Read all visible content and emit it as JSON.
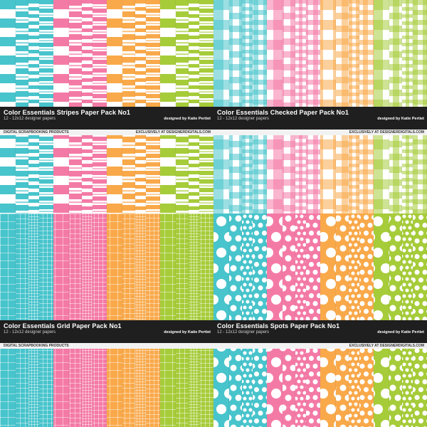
{
  "colors": {
    "aqua": "#48c4cc",
    "pink": "#f47aa6",
    "orange": "#f9a94a",
    "green": "#a6cc3a",
    "white": "#ffffff",
    "banner": "#1f1f1f"
  },
  "packs": [
    {
      "id": "stripes",
      "pattern": "stripes",
      "title": "Color Essentials Stripes Paper Pack No1",
      "subtitle": "12 - 12x12 designer papers",
      "designer": "designed by Katie Pertiet",
      "brand": "DIGITAL SCRAPBOOKING PRODUCTS",
      "exclusive": "EXCLUSIVELY AT DESIGNERDIGITALS.COM"
    },
    {
      "id": "checked",
      "pattern": "checked",
      "title": "Color Essentials Checked Paper Pack No1",
      "subtitle": "12 - 12x12 designer papers",
      "designer": "designed by Katie Pertiet",
      "brand": "",
      "exclusive": "EXCLUSIVELY AT DESIGNERDIGITALS.COM"
    },
    {
      "id": "grid",
      "pattern": "grid",
      "title": "Color Essentials Grid Paper Pack No1",
      "subtitle": "12 - 12x12 designer papers",
      "designer": "designed by Katie Pertiet",
      "brand": "DIGITAL SCRAPBOOKING PRODUCTS",
      "exclusive": ""
    },
    {
      "id": "spots",
      "pattern": "spots",
      "title": "Color Essentials Spots Paper Pack No1",
      "subtitle": "12 - 12x12 designer papers",
      "designer": "designed by Katie Pertiet",
      "brand": "",
      "exclusive": "EXCLUSIVELY AT DESIGNERDIGITALS.COM"
    }
  ]
}
